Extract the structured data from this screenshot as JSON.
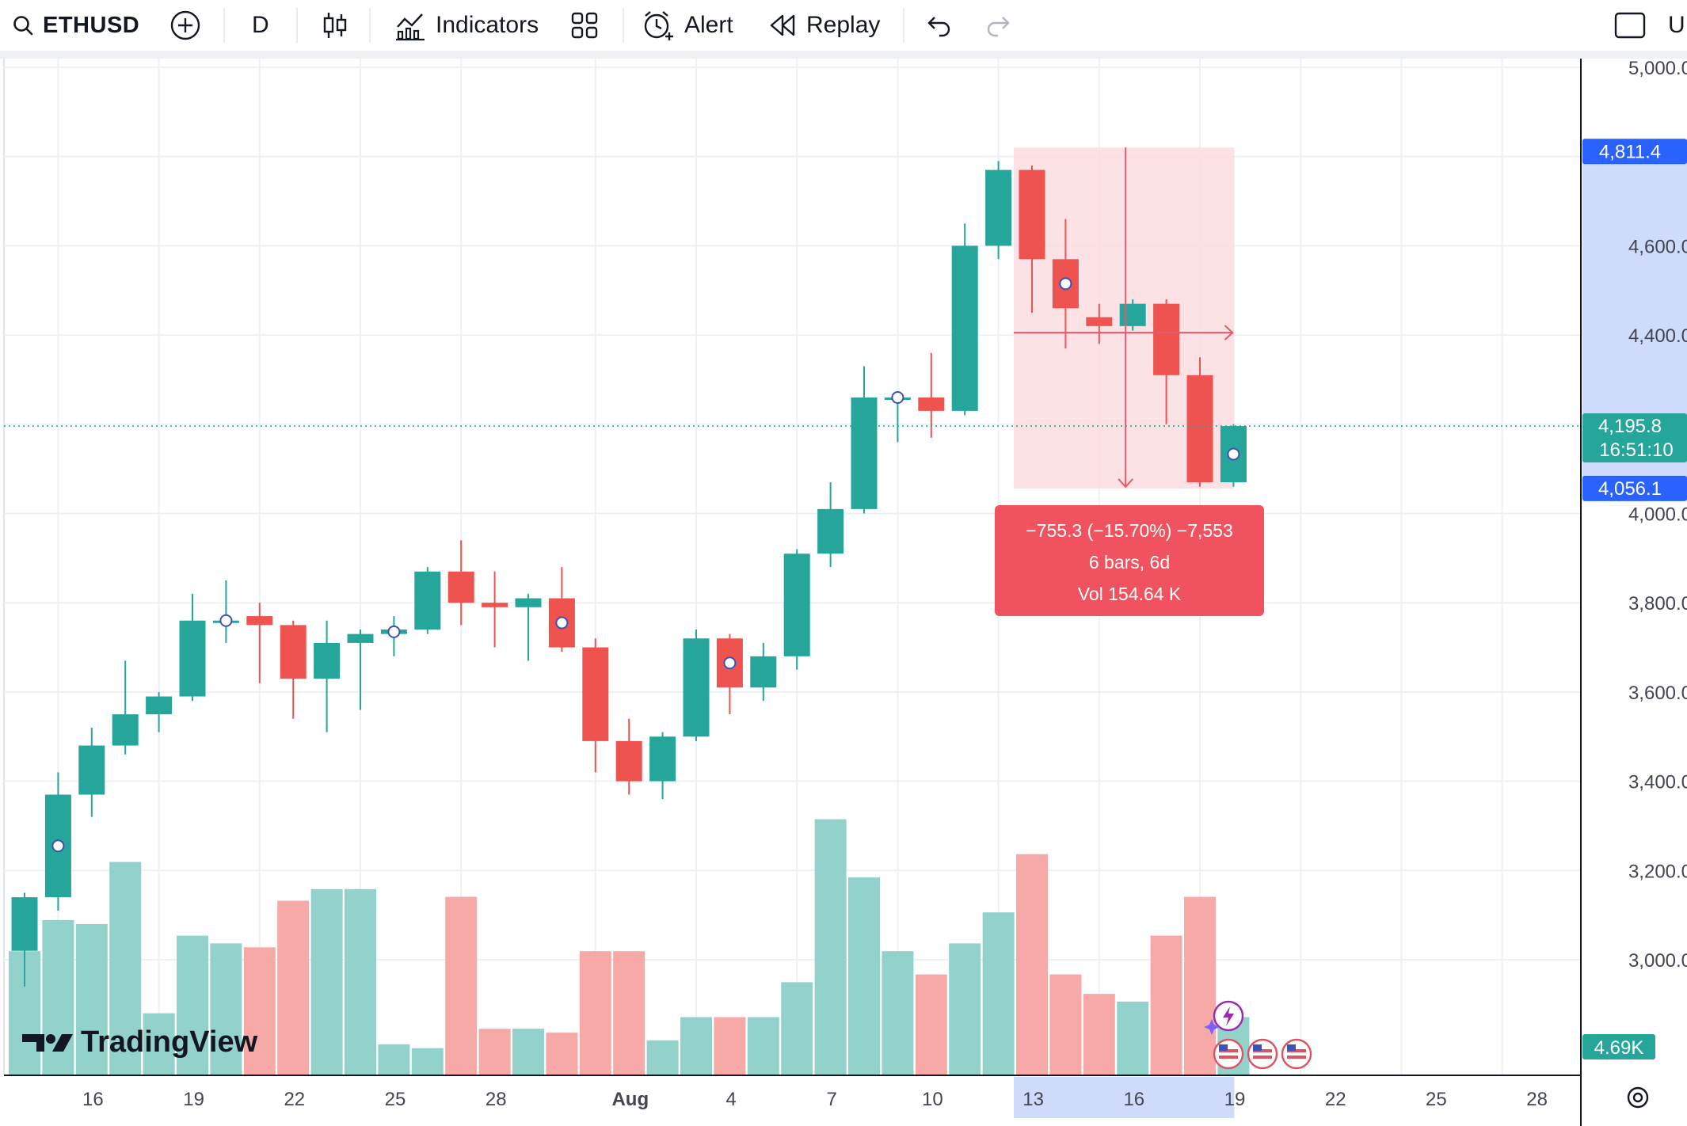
{
  "toolbar": {
    "symbol": "ETHUSD",
    "interval": "D",
    "indicators_label": "Indicators",
    "alert_label": "Alert",
    "replay_label": "Replay",
    "cut_label": "U"
  },
  "logo": {
    "text": "TradingView"
  },
  "price_labels": {
    "high": "4,811.4",
    "current": "4,195.8",
    "countdown": "16:51:10",
    "low": "4,056.1",
    "volume": "4.69K"
  },
  "measure": {
    "line1": "−755.3 (−15.70%) −7,553",
    "line2": "6 bars, 6d",
    "line3": "Vol 154.64 K"
  },
  "colors": {
    "up": "#26a69a",
    "down": "#ef5350",
    "up_volume": "#93d2cb",
    "down_volume": "#f7a9a7",
    "measure_fill": "#fcdce0",
    "measure_label": "#f0525f",
    "axis_highlight": "#cfdbfb",
    "price_label_blue": "#2962ff"
  },
  "chart_data": {
    "type": "candlestick",
    "symbol": "ETHUSD",
    "interval": "D",
    "ylim": [
      2800,
      5000
    ],
    "y_ticks": [
      "5,000.0",
      "4,600.0",
      "4,400.0",
      "4,000.0",
      "3,800.0",
      "3,600.0",
      "3,400.0",
      "3,200.0",
      "3,000.0"
    ],
    "y_tick_values": [
      5000,
      4600,
      4400,
      4000,
      3800,
      3600,
      3400,
      3200,
      3000
    ],
    "x_ticks": [
      {
        "i": 1,
        "label": "16"
      },
      {
        "i": 4,
        "label": "19"
      },
      {
        "i": 7,
        "label": "22"
      },
      {
        "i": 10,
        "label": "25"
      },
      {
        "i": 13,
        "label": "28"
      },
      {
        "i": 17,
        "label": "Aug"
      },
      {
        "i": 20,
        "label": "4"
      },
      {
        "i": 23,
        "label": "7"
      },
      {
        "i": 26,
        "label": "10"
      },
      {
        "i": 29,
        "label": "13"
      },
      {
        "i": 32,
        "label": "16"
      },
      {
        "i": 35,
        "label": "19"
      },
      {
        "i": 38,
        "label": "22"
      },
      {
        "i": 41,
        "label": "25"
      },
      {
        "i": 44,
        "label": "28"
      }
    ],
    "candles": [
      {
        "d": "Jul 15",
        "o": 3020,
        "h": 3150,
        "l": 2940,
        "c": 3140,
        "v": 32
      },
      {
        "d": "Jul 16",
        "o": 3140,
        "h": 3420,
        "l": 3110,
        "c": 3370,
        "v": 40
      },
      {
        "d": "Jul 17",
        "o": 3370,
        "h": 3520,
        "l": 3320,
        "c": 3480,
        "v": 39
      },
      {
        "d": "Jul 18",
        "o": 3480,
        "h": 3670,
        "l": 3460,
        "c": 3550,
        "v": 55
      },
      {
        "d": "Jul 19",
        "o": 3550,
        "h": 3600,
        "l": 3510,
        "c": 3590,
        "v": 16
      },
      {
        "d": "Jul 20",
        "o": 3590,
        "h": 3820,
        "l": 3580,
        "c": 3760,
        "v": 36
      },
      {
        "d": "Jul 21",
        "o": 3760,
        "h": 3850,
        "l": 3710,
        "c": 3760,
        "v": 34
      },
      {
        "d": "Jul 22",
        "o": 3770,
        "h": 3800,
        "l": 3620,
        "c": 3750,
        "v": 33
      },
      {
        "d": "Jul 23",
        "o": 3750,
        "h": 3760,
        "l": 3540,
        "c": 3630,
        "v": 45
      },
      {
        "d": "Jul 24",
        "o": 3630,
        "h": 3760,
        "l": 3510,
        "c": 3710,
        "v": 48
      },
      {
        "d": "Jul 25",
        "o": 3710,
        "h": 3740,
        "l": 3560,
        "c": 3730,
        "v": 48
      },
      {
        "d": "Jul 26",
        "o": 3730,
        "h": 3770,
        "l": 3680,
        "c": 3740,
        "v": 8
      },
      {
        "d": "Jul 27",
        "o": 3740,
        "h": 3880,
        "l": 3730,
        "c": 3870,
        "v": 7
      },
      {
        "d": "Jul 28",
        "o": 3870,
        "h": 3940,
        "l": 3750,
        "c": 3800,
        "v": 46
      },
      {
        "d": "Jul 29",
        "o": 3800,
        "h": 3870,
        "l": 3700,
        "c": 3790,
        "v": 12
      },
      {
        "d": "Jul 30",
        "o": 3790,
        "h": 3820,
        "l": 3670,
        "c": 3810,
        "v": 12
      },
      {
        "d": "Jul 31",
        "o": 3810,
        "h": 3880,
        "l": 3690,
        "c": 3700,
        "v": 11
      },
      {
        "d": "Aug 1",
        "o": 3700,
        "h": 3720,
        "l": 3420,
        "c": 3490,
        "v": 32
      },
      {
        "d": "Aug 2",
        "o": 3490,
        "h": 3540,
        "l": 3370,
        "c": 3400,
        "v": 32
      },
      {
        "d": "Aug 3",
        "o": 3400,
        "h": 3510,
        "l": 3360,
        "c": 3500,
        "v": 9
      },
      {
        "d": "Aug 4",
        "o": 3500,
        "h": 3740,
        "l": 3490,
        "c": 3720,
        "v": 15
      },
      {
        "d": "Aug 5",
        "o": 3720,
        "h": 3730,
        "l": 3550,
        "c": 3610,
        "v": 15
      },
      {
        "d": "Aug 6",
        "o": 3610,
        "h": 3710,
        "l": 3580,
        "c": 3680,
        "v": 15
      },
      {
        "d": "Aug 7",
        "o": 3680,
        "h": 3920,
        "l": 3650,
        "c": 3910,
        "v": 24
      },
      {
        "d": "Aug 8",
        "o": 3910,
        "h": 4070,
        "l": 3880,
        "c": 4010,
        "v": 66
      },
      {
        "d": "Aug 9",
        "o": 4010,
        "h": 4330,
        "l": 4000,
        "c": 4260,
        "v": 51
      },
      {
        "d": "Aug 10",
        "o": 4260,
        "h": 4270,
        "l": 4160,
        "c": 4260,
        "v": 32
      },
      {
        "d": "Aug 11",
        "o": 4260,
        "h": 4360,
        "l": 4170,
        "c": 4230,
        "v": 26
      },
      {
        "d": "Aug 12",
        "o": 4230,
        "h": 4650,
        "l": 4220,
        "c": 4600,
        "v": 34
      },
      {
        "d": "Aug 13",
        "o": 4600,
        "h": 4790,
        "l": 4570,
        "c": 4770,
        "v": 42
      },
      {
        "d": "Aug 14",
        "o": 4770,
        "h": 4780,
        "l": 4450,
        "c": 4570,
        "v": 57
      },
      {
        "d": "Aug 15",
        "o": 4570,
        "h": 4660,
        "l": 4370,
        "c": 4460,
        "v": 26
      },
      {
        "d": "Aug 16",
        "o": 4440,
        "h": 4470,
        "l": 4380,
        "c": 4420,
        "v": 21
      },
      {
        "d": "Aug 17",
        "o": 4420,
        "h": 4480,
        "l": 4410,
        "c": 4470,
        "v": 19
      },
      {
        "d": "Aug 18",
        "o": 4470,
        "h": 4480,
        "l": 4200,
        "c": 4310,
        "v": 36
      },
      {
        "d": "Aug 19",
        "o": 4310,
        "h": 4350,
        "l": 4060,
        "c": 4070,
        "v": 46
      },
      {
        "d": "Aug 20",
        "o": 4070,
        "h": 4200,
        "l": 4060,
        "c": 4196,
        "v": 15
      }
    ],
    "measure_range": {
      "from": "Aug 14",
      "to": "Aug 20",
      "high": 4811.4,
      "low": 4056.1
    }
  }
}
